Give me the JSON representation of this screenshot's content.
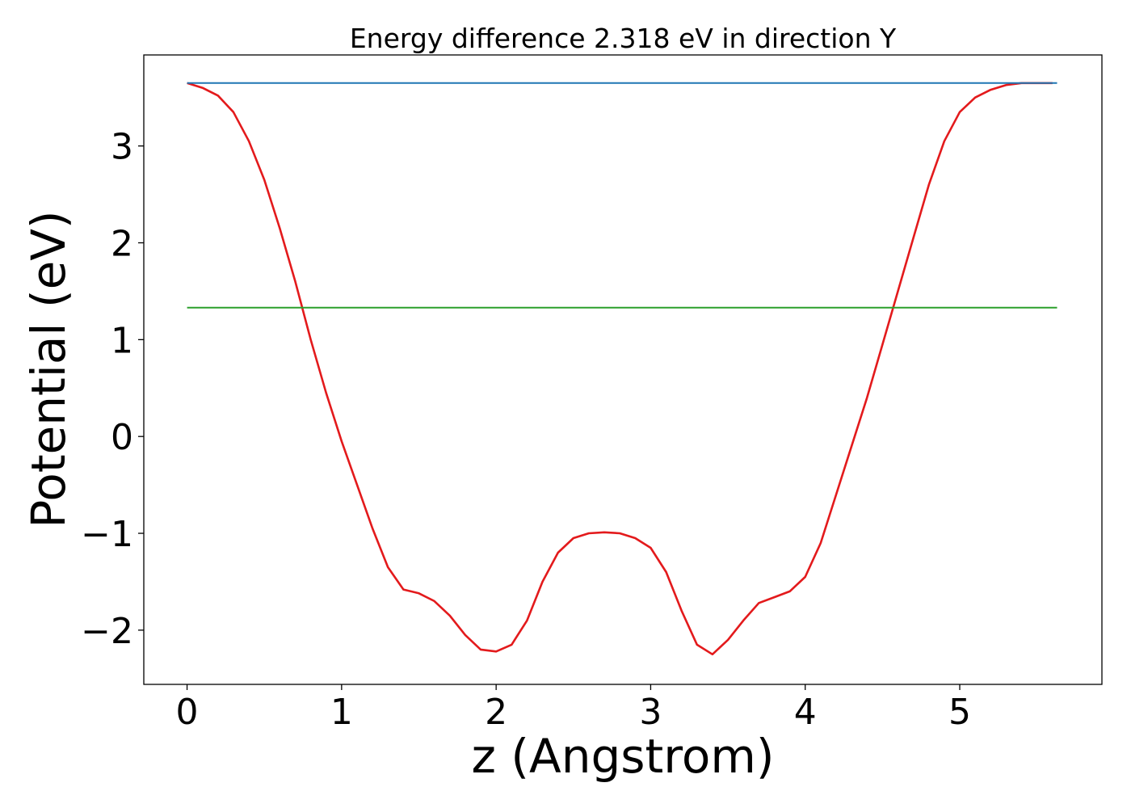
{
  "chart_data": {
    "type": "line",
    "title": "Energy difference 2.318 eV in direction Y",
    "xlabel": "z (Angstrom)",
    "ylabel": "Potential (eV)",
    "xlim": [
      -0.28,
      5.92
    ],
    "ylim": [
      -2.56,
      3.94
    ],
    "xticks": [
      0,
      1,
      2,
      3,
      4,
      5
    ],
    "yticks": [
      -2,
      -1,
      0,
      1,
      2,
      3
    ],
    "grid": false,
    "legend": "none",
    "series": [
      {
        "color": "#e31a1c",
        "x": [
          0,
          0.1,
          0.2,
          0.3,
          0.4,
          0.5,
          0.6,
          0.7,
          0.8,
          0.9,
          1.0,
          1.1,
          1.2,
          1.3,
          1.4,
          1.5,
          1.6,
          1.7,
          1.8,
          1.9,
          2.0,
          2.1,
          2.2,
          2.3,
          2.4,
          2.5,
          2.6,
          2.7,
          2.8,
          2.9,
          3.0,
          3.1,
          3.2,
          3.3,
          3.4,
          3.5,
          3.6,
          3.7,
          3.8,
          3.9,
          4.0,
          4.1,
          4.2,
          4.3,
          4.4,
          4.5,
          4.6,
          4.7,
          4.8,
          4.9,
          5.0,
          5.1,
          5.2,
          5.3,
          5.4,
          5.5,
          5.6
        ],
        "y": [
          3.65,
          3.6,
          3.52,
          3.35,
          3.05,
          2.65,
          2.15,
          1.6,
          1.0,
          0.45,
          -0.05,
          -0.5,
          -0.95,
          -1.35,
          -1.58,
          -1.62,
          -1.7,
          -1.85,
          -2.05,
          -2.2,
          -2.22,
          -2.15,
          -1.9,
          -1.5,
          -1.2,
          -1.05,
          -1.0,
          -0.99,
          -1.0,
          -1.05,
          -1.15,
          -1.4,
          -1.8,
          -2.15,
          -2.25,
          -2.1,
          -1.9,
          -1.72,
          -1.66,
          -1.6,
          -1.45,
          -1.1,
          -0.6,
          -0.1,
          0.4,
          0.95,
          1.5,
          2.05,
          2.6,
          3.05,
          3.35,
          3.5,
          3.58,
          3.63,
          3.65,
          3.65,
          3.65
        ]
      },
      {
        "color": "#1f77b4",
        "x": [
          0,
          5.63
        ],
        "y": [
          3.65,
          3.65
        ]
      },
      {
        "color": "#2ca02c",
        "x": [
          0,
          5.63
        ],
        "y": [
          1.33,
          1.33
        ]
      }
    ]
  }
}
